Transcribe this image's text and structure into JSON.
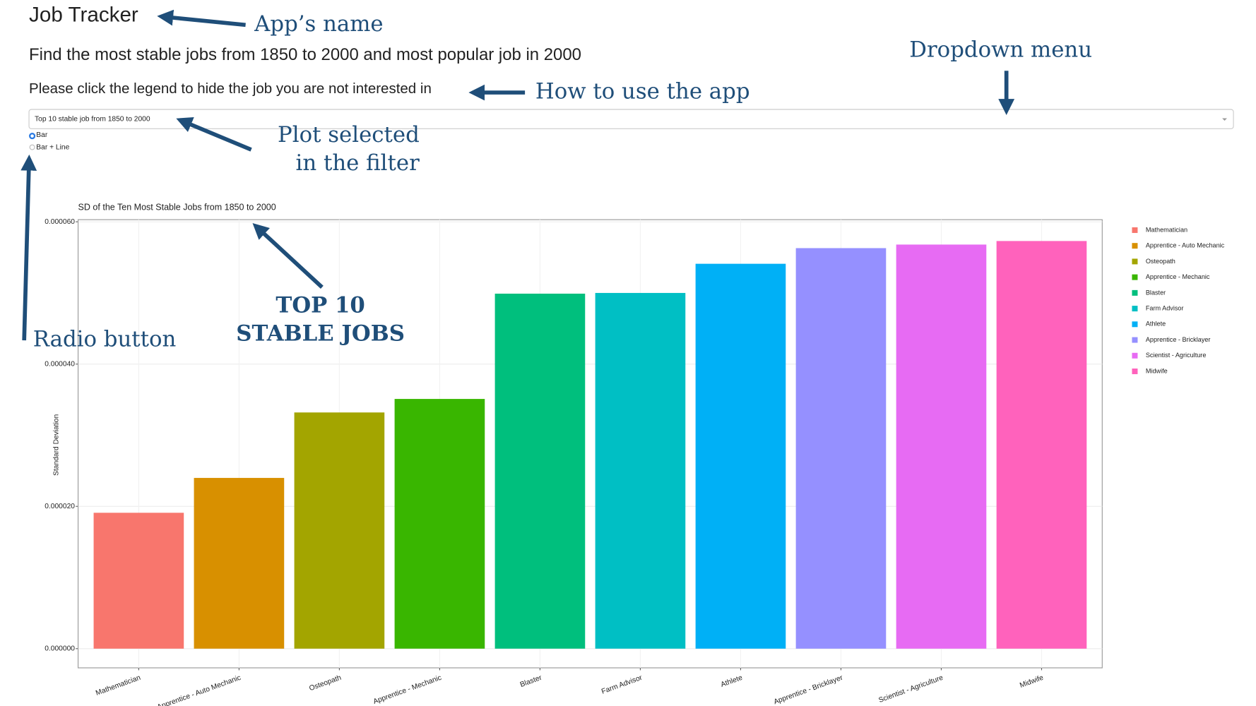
{
  "app": {
    "title": "Job Tracker",
    "subtitle": "Find the most stable jobs from 1850 to 2000 and most popular job in 2000",
    "instruction": "Please click the legend to hide the job you are not interested in",
    "dropdown": "Top 10 stable job from 1850 to 2000",
    "radio": [
      "Bar",
      "Bar + Line"
    ]
  },
  "annotations": {
    "app_name": "App’s name",
    "dropdown_menu": "Dropdown menu",
    "how_to_use": "How to use the app",
    "plot_selected": [
      "Plot selected",
      "in the filter"
    ],
    "top_jobs": [
      "TOP 10",
      "STABLE JOBS"
    ],
    "radio_button": "Radio button"
  },
  "chart_data": {
    "type": "bar",
    "title": "SD of the Ten Most Stable Jobs from 1850 to 2000",
    "y_label": "Standard Deviation",
    "categories": [
      "Mathematician",
      "Apprentice - Auto Mechanic",
      "Osteopath",
      "Apprentice - Mechanic",
      "Blaster",
      "Farm Advisor",
      "Athlete",
      "Apprentice - Bricklayer",
      "Scientist - Agriculture",
      "Midwife"
    ],
    "values": [
      1.91e-05,
      2.4e-05,
      3.32e-05,
      3.51e-05,
      4.99e-05,
      5e-05,
      5.41e-05,
      5.63e-05,
      5.68e-05,
      5.73e-05
    ],
    "colors": [
      "#f8766d",
      "#d89000",
      "#a3a500",
      "#39b600",
      "#00bf7d",
      "#00bfc4",
      "#00b0f6",
      "#9590ff",
      "#e76bf3",
      "#ff62bc"
    ],
    "ylim": [
      -2.7e-06,
      6.03e-05
    ],
    "yticks": [
      {
        "value": 0,
        "label": "0.000000"
      },
      {
        "value": 2e-05,
        "label": "0.000020"
      },
      {
        "value": 4e-05,
        "label": "0.000040"
      },
      {
        "value": 6e-05,
        "label": "0.000060"
      }
    ],
    "grid": true,
    "legend": "right"
  }
}
